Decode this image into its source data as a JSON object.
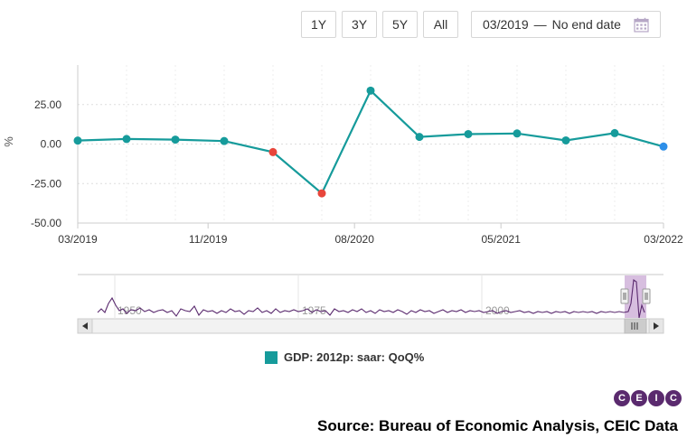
{
  "toolbar": {
    "ranges": [
      "1Y",
      "3Y",
      "5Y",
      "All"
    ],
    "date_from": "03/2019",
    "date_separator": "—",
    "date_to": "No end date",
    "calendar_icon": "calendar-icon"
  },
  "chart_data": {
    "type": "line",
    "title": "",
    "xlabel": "",
    "ylabel": "%",
    "ylim": [
      -50,
      50
    ],
    "yticks": [
      25,
      0,
      -25,
      -50
    ],
    "ytick_labels": [
      "25.00",
      "0.00",
      "-25.00",
      "-50.00"
    ],
    "x": [
      "03/2019",
      "06/2019",
      "09/2019",
      "12/2019",
      "03/2020",
      "06/2020",
      "09/2020",
      "12/2020",
      "03/2021",
      "06/2021",
      "09/2021",
      "12/2021",
      "03/2022"
    ],
    "xtick_labels": [
      "03/2019",
      "11/2019",
      "08/2020",
      "05/2021",
      "03/2022"
    ],
    "xtick_indices": [
      0,
      2.67,
      5.67,
      8.67,
      12
    ],
    "series": [
      {
        "name": "GDP: 2012p: saar: QoQ%",
        "color": "#169b9b",
        "values": [
          2.2,
          3.2,
          2.8,
          1.9,
          -5.1,
          -31.2,
          33.8,
          4.5,
          6.3,
          6.7,
          2.3,
          6.9,
          -1.6
        ]
      }
    ],
    "point_colors": [
      "#169b9b",
      "#169b9b",
      "#169b9b",
      "#169b9b",
      "#e8463b",
      "#e8463b",
      "#169b9b",
      "#169b9b",
      "#169b9b",
      "#169b9b",
      "#169b9b",
      "#169b9b",
      "#2e8fe8"
    ],
    "grid": true,
    "legend_position": "bottom-center"
  },
  "navigator": {
    "labels": [
      "1950",
      "1975",
      "2000"
    ],
    "line_color": "#5a2a6e",
    "scroll_left_icon": "arrow-left-icon",
    "scroll_right_icon": "arrow-right-icon",
    "grip_icon": "grip-icon"
  },
  "legend": {
    "label": "GDP: 2012p: saar: QoQ%",
    "color": "#169b9b"
  },
  "branding": {
    "logo_letters": [
      "C",
      "E",
      "I",
      "C"
    ]
  },
  "source": "Source: Bureau of Economic Analysis, CEIC Data"
}
